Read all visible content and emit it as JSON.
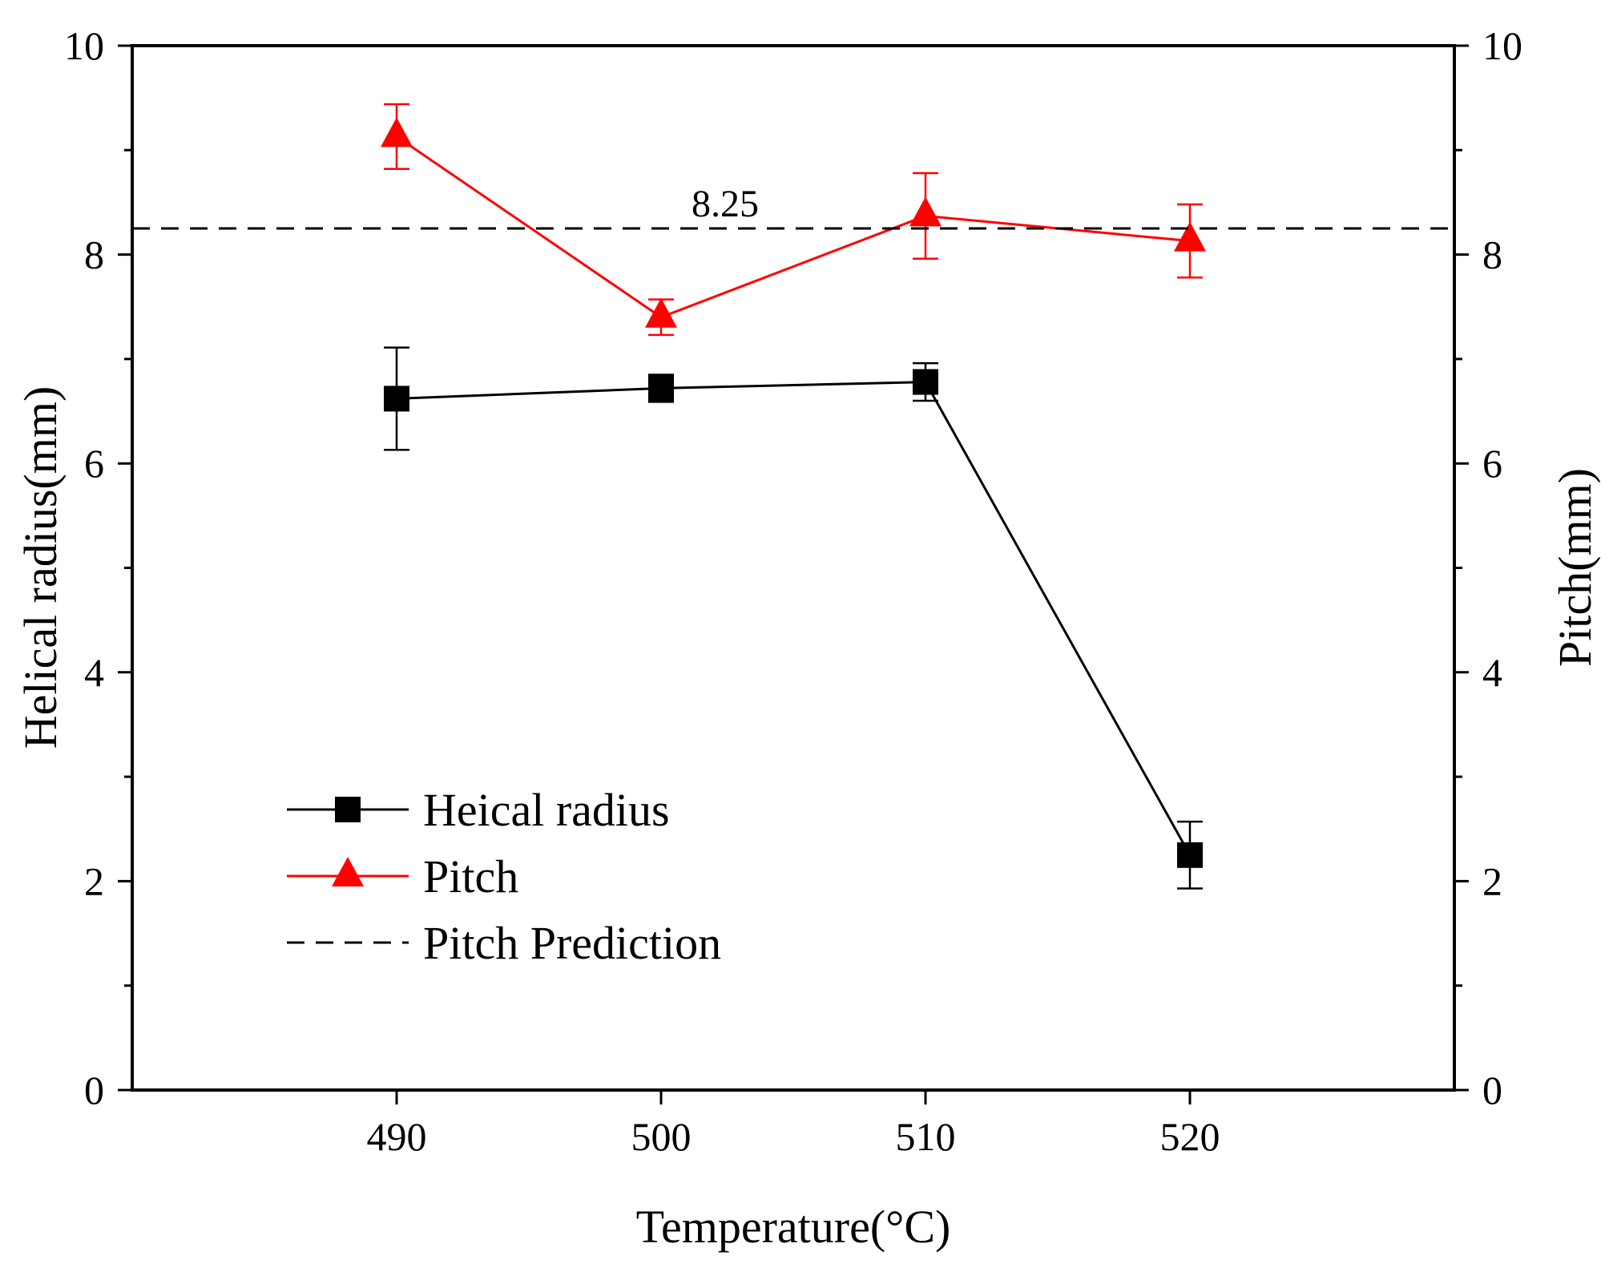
{
  "chart_data": {
    "type": "line",
    "x": [
      490,
      500,
      510,
      520
    ],
    "xlabel": "Temperature(°C)",
    "ylabel": "Helical radius(mm)",
    "y2label": "Pitch(mm)",
    "xlim": [
      480,
      530
    ],
    "ylim": [
      0,
      10
    ],
    "y2lim": [
      0,
      10
    ],
    "x_ticks": [
      "490",
      "500",
      "510",
      "520"
    ],
    "y_ticks": [
      "0",
      "2",
      "4",
      "6",
      "8",
      "10"
    ],
    "y2_ticks": [
      "0",
      "2",
      "4",
      "6",
      "8",
      "10"
    ],
    "grid": false,
    "legend_position": "bottom-left",
    "series": [
      {
        "name": "Heical radius",
        "axis": "left",
        "marker": "square",
        "color": "#000000",
        "values": [
          6.62,
          6.72,
          6.78,
          2.25
        ],
        "errors": [
          0.49,
          0.13,
          0.18,
          0.32
        ]
      },
      {
        "name": "Pitch",
        "axis": "right",
        "marker": "triangle",
        "color": "#ff0000",
        "values": [
          9.13,
          7.4,
          8.37,
          8.13
        ],
        "errors": [
          0.31,
          0.17,
          0.41,
          0.35
        ]
      },
      {
        "name": "Pitch Prediction",
        "axis": "right",
        "style": "dashed",
        "color": "#000000",
        "value": 8.25
      }
    ],
    "annotations": [
      {
        "text": "8.25",
        "x": 505,
        "y": 8.25
      }
    ]
  }
}
